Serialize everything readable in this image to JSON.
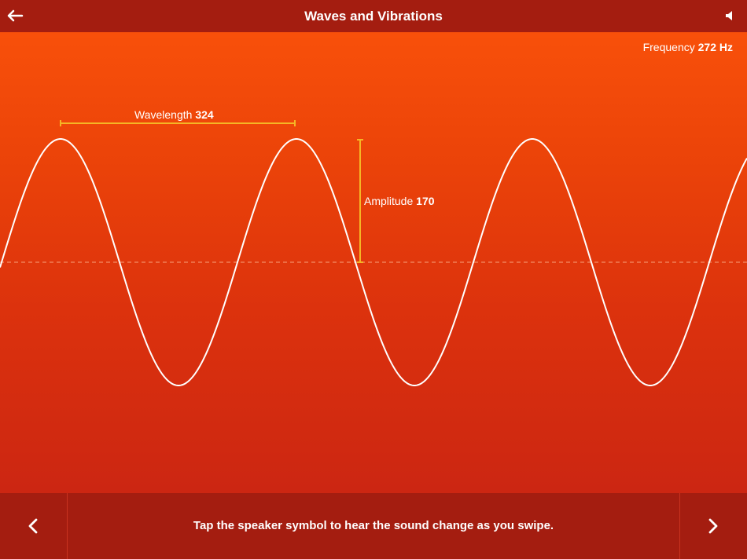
{
  "header": {
    "title": "Waves and Vibrations",
    "back_icon": "back-arrow-icon",
    "speaker_icon": "speaker-icon"
  },
  "wave": {
    "frequency_label": "Frequency",
    "frequency_value": "272 Hz",
    "wavelength_label": "Wavelength",
    "wavelength_value": "324",
    "amplitude_label": "Amplitude",
    "amplitude_value": "170",
    "wave_color": "#ffffff",
    "marker_color": "#f5b625",
    "baseline_color": "#f7a07a"
  },
  "footer": {
    "hint": "Tap the speaker symbol to hear the sound change as you swipe.",
    "prev_icon": "chevron-left-icon",
    "next_icon": "chevron-right-icon"
  }
}
